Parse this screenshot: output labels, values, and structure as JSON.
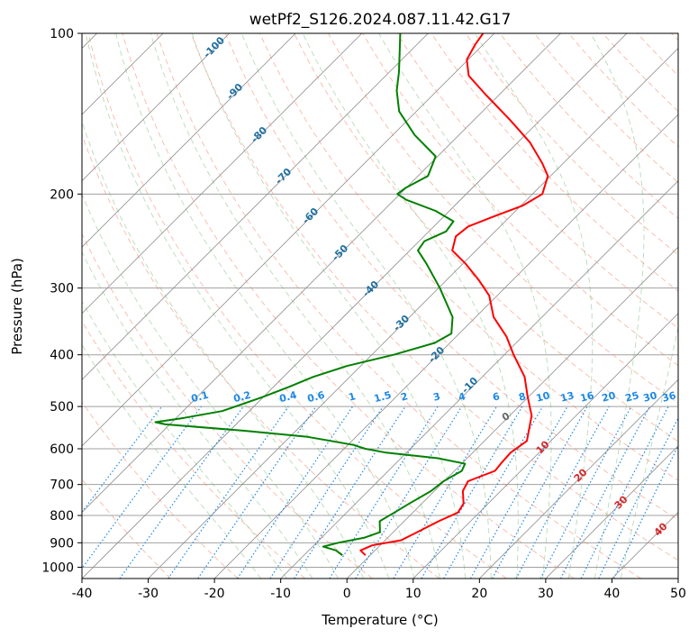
{
  "chart_data": {
    "type": "line",
    "title": "wetPf2_S126.2024.087.11.42.G17",
    "xlabel": "Temperature (°C)",
    "ylabel": "Pressure (hPa)",
    "xlim": [
      -40,
      50
    ],
    "ylim": [
      1050,
      100
    ],
    "y_scale": "log",
    "grid": true,
    "x_ticks": [
      -40,
      -30,
      -20,
      -10,
      0,
      10,
      20,
      30,
      40,
      50
    ],
    "y_ticks": [
      100,
      200,
      300,
      400,
      500,
      600,
      700,
      800,
      900,
      1000
    ],
    "colors": {
      "temperature": "#ff0000",
      "dewpoint": "#008000",
      "isobar": "#a0a0a0",
      "skewed_isotherm": "#8c8c8c",
      "dry_adiabat": "#f08060",
      "moist_adiabat": "#60b060",
      "mixing_ratio": "#1e88e5",
      "isotherm_label": "#1f6fa0",
      "moist_label": "#666666",
      "dry_label": "#d62728"
    },
    "series": [
      {
        "key": "temperature",
        "values": [
          [
            950,
            -0.7
          ],
          [
            930,
            -2.2
          ],
          [
            910,
            -1.2
          ],
          [
            890,
            2.4
          ],
          [
            860,
            3.6
          ],
          [
            820,
            5.2
          ],
          [
            790,
            6.8
          ],
          [
            760,
            6.3
          ],
          [
            720,
            4.3
          ],
          [
            690,
            3.6
          ],
          [
            660,
            6.1
          ],
          [
            640,
            5.9
          ],
          [
            610,
            5.7
          ],
          [
            580,
            6.4
          ],
          [
            560,
            5.4
          ],
          [
            520,
            3.3
          ],
          [
            480,
            -0.1
          ],
          [
            440,
            -3.6
          ],
          [
            400,
            -8.6
          ],
          [
            370,
            -12.4
          ],
          [
            340,
            -17.3
          ],
          [
            310,
            -21.2
          ],
          [
            290,
            -25.1
          ],
          [
            270,
            -29.6
          ],
          [
            255,
            -33.6
          ],
          [
            240,
            -35.2
          ],
          [
            230,
            -34.8
          ],
          [
            220,
            -32.4
          ],
          [
            210,
            -29.7
          ],
          [
            200,
            -28.5
          ],
          [
            185,
            -30.4
          ],
          [
            175,
            -33.2
          ],
          [
            160,
            -38.2
          ],
          [
            145,
            -44.7
          ],
          [
            130,
            -52.2
          ],
          [
            120,
            -57.5
          ],
          [
            112,
            -60.2
          ],
          [
            105,
            -61.2
          ],
          [
            100,
            -61.7
          ]
        ]
      },
      {
        "key": "dewpoint",
        "values": [
          [
            950,
            -4.2
          ],
          [
            930,
            -5.9
          ],
          [
            915,
            -8.4
          ],
          [
            900,
            -6.7
          ],
          [
            880,
            -3.5
          ],
          [
            860,
            -2.0
          ],
          [
            820,
            -3.7
          ],
          [
            790,
            -2.8
          ],
          [
            760,
            -1.9
          ],
          [
            720,
            -0.5
          ],
          [
            690,
            -0.1
          ],
          [
            660,
            1.1
          ],
          [
            640,
            0.5
          ],
          [
            625,
            -4.4
          ],
          [
            610,
            -13.1
          ],
          [
            600,
            -16.8
          ],
          [
            590,
            -19.2
          ],
          [
            570,
            -27.3
          ],
          [
            555,
            -37.8
          ],
          [
            540,
            -50.7
          ],
          [
            535,
            -52.5
          ],
          [
            525,
            -48.8
          ],
          [
            510,
            -44.1
          ],
          [
            480,
            -40.1
          ],
          [
            460,
            -37.7
          ],
          [
            440,
            -35.5
          ],
          [
            420,
            -32.1
          ],
          [
            400,
            -26.7
          ],
          [
            380,
            -22.3
          ],
          [
            365,
            -21.2
          ],
          [
            340,
            -23.5
          ],
          [
            300,
            -29.8
          ],
          [
            270,
            -35.5
          ],
          [
            255,
            -38.8
          ],
          [
            245,
            -39.2
          ],
          [
            235,
            -37.4
          ],
          [
            225,
            -37.8
          ],
          [
            215,
            -42.1
          ],
          [
            205,
            -48.2
          ],
          [
            200,
            -50.4
          ],
          [
            195,
            -50.1
          ],
          [
            185,
            -48.5
          ],
          [
            170,
            -50.3
          ],
          [
            155,
            -56.7
          ],
          [
            140,
            -62.6
          ],
          [
            128,
            -66.1
          ],
          [
            118,
            -68.6
          ],
          [
            108,
            -71.6
          ],
          [
            100,
            -74.2
          ]
        ]
      }
    ],
    "background_labels": {
      "isotherms": [
        "-100",
        "-90",
        "-80",
        "-70",
        "-60",
        "-50",
        "-40",
        "-30",
        "-20",
        "-10"
      ],
      "mixing_ratio": [
        "0.1",
        "0.2",
        "0.4",
        "0.6",
        "1",
        "1.5",
        "2",
        "3",
        "4",
        "6",
        "8",
        "10",
        "13",
        "16",
        "20",
        "25",
        "30",
        "36"
      ],
      "moist_adiabat": [
        "0"
      ],
      "dry_adiabats": [
        "10",
        "20",
        "30",
        "40"
      ]
    }
  }
}
